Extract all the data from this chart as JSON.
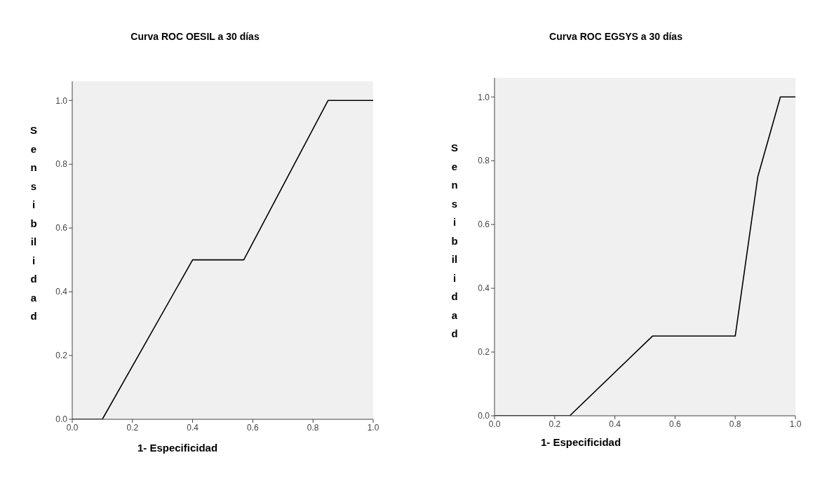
{
  "chart_data": [
    {
      "type": "line",
      "title": "Curva ROC OESIL a 30 días",
      "xlabel": "1- Especificidad",
      "ylabel": "Sensibilidad",
      "x": [
        0,
        0.1,
        0.4,
        0.57,
        0.85,
        1
      ],
      "series": [
        {
          "color": "#000000",
          "values": [
            0,
            0,
            0.5,
            0.5,
            1,
            1
          ]
        }
      ],
      "xlim": [
        0,
        1
      ],
      "ylim": [
        0,
        1.06
      ],
      "xticks": [
        {
          "value": 0,
          "label": "0.0"
        },
        {
          "value": 0.2,
          "label": "0.2"
        },
        {
          "value": 0.4,
          "label": "0.4"
        },
        {
          "value": 0.6,
          "label": "0.6"
        },
        {
          "value": 0.8,
          "label": "0.8"
        },
        {
          "value": 1,
          "label": "1.0"
        }
      ],
      "yticks": [
        {
          "value": 0,
          "label": "0.0"
        },
        {
          "value": 0.2,
          "label": "0.2"
        },
        {
          "value": 0.4,
          "label": "0.4"
        },
        {
          "value": 0.6,
          "label": "0.6"
        },
        {
          "value": 0.8,
          "label": "0.8"
        },
        {
          "value": 1,
          "label": "1.0"
        }
      ]
    },
    {
      "type": "line",
      "title": "Curva ROC EGSYS a 30 días",
      "xlabel": "1- Especificidad",
      "ylabel": "Sensibilidad",
      "x": [
        0,
        0.25,
        0.525,
        0.8,
        0.875,
        0.95,
        1
      ],
      "series": [
        {
          "color": "#000000",
          "values": [
            0,
            0,
            0.25,
            0.25,
            0.75,
            1,
            1
          ]
        }
      ],
      "xlim": [
        0,
        1
      ],
      "ylim": [
        0,
        1.06
      ],
      "xticks": [
        {
          "value": 0,
          "label": "0.0"
        },
        {
          "value": 0.2,
          "label": "0.2"
        },
        {
          "value": 0.4,
          "label": "0.4"
        },
        {
          "value": 0.6,
          "label": "0.6"
        },
        {
          "value": 0.8,
          "label": "0.8"
        },
        {
          "value": 1,
          "label": "1.0"
        }
      ],
      "yticks": [
        {
          "value": 0,
          "label": "0.0"
        },
        {
          "value": 0.2,
          "label": "0.2"
        },
        {
          "value": 0.4,
          "label": "0.4"
        },
        {
          "value": 0.6,
          "label": "0.6"
        },
        {
          "value": 0.8,
          "label": "0.8"
        },
        {
          "value": 1,
          "label": "1.0"
        }
      ]
    }
  ]
}
